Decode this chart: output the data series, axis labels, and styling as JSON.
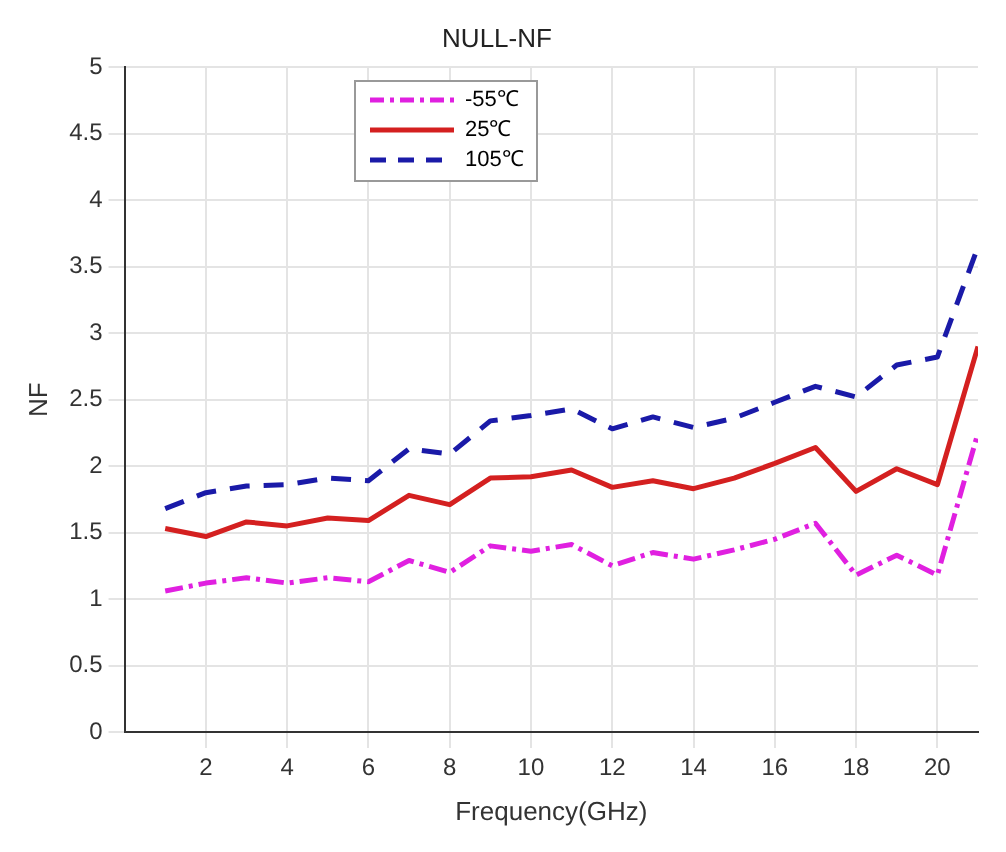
{
  "chart_data": {
    "type": "line",
    "title": "NULL-NF",
    "xlabel": "Frequency(GHz)",
    "ylabel": "NF",
    "x": [
      1,
      2,
      3,
      4,
      5,
      6,
      7,
      8,
      9,
      10,
      11,
      12,
      13,
      14,
      15,
      16,
      17,
      18,
      19,
      20,
      21
    ],
    "series": [
      {
        "name": "-55℃",
        "color": "#e020e0",
        "line_style": "dashdot",
        "values": [
          1.06,
          1.12,
          1.16,
          1.12,
          1.16,
          1.13,
          1.29,
          1.2,
          1.4,
          1.36,
          1.41,
          1.25,
          1.35,
          1.3,
          1.37,
          1.45,
          1.57,
          1.18,
          1.33,
          1.18,
          2.25
        ]
      },
      {
        "name": "25℃",
        "color": "#d42020",
        "line_style": "solid",
        "values": [
          1.53,
          1.47,
          1.58,
          1.55,
          1.61,
          1.59,
          1.78,
          1.71,
          1.91,
          1.92,
          1.97,
          1.84,
          1.89,
          1.83,
          1.91,
          2.02,
          2.14,
          1.81,
          1.98,
          1.86,
          2.9
        ]
      },
      {
        "name": "105℃",
        "color": "#1a1aa8",
        "line_style": "dashed",
        "values": [
          1.68,
          1.8,
          1.85,
          1.86,
          1.91,
          1.89,
          2.13,
          2.09,
          2.34,
          2.38,
          2.43,
          2.28,
          2.37,
          2.29,
          2.36,
          2.48,
          2.6,
          2.52,
          2.76,
          2.82,
          3.65
        ]
      }
    ],
    "xlim": [
      0,
      21
    ],
    "xticks": [
      2,
      4,
      6,
      8,
      10,
      12,
      14,
      16,
      18,
      20
    ],
    "ylim": [
      0,
      5
    ],
    "yticks": [
      0,
      0.5,
      1,
      1.5,
      2,
      2.5,
      3,
      3.5,
      4,
      4.5,
      5
    ],
    "grid": true,
    "legend": "top left",
    "marker": "none"
  }
}
